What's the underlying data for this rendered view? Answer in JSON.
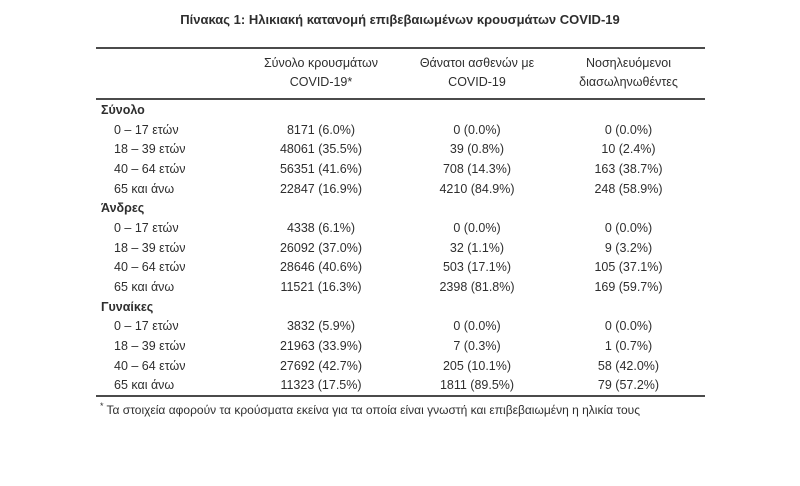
{
  "title": "Πίνακας 1: Ηλικιακή κατανομή επιβεβαιωμένων κρουσμάτων COVID-19",
  "colors": {
    "text": "#2e2e2e",
    "rule": "#4b4b4b",
    "background": "#ffffff"
  },
  "table": {
    "columns": [
      {
        "line1": "Σύνολο κρουσμάτων",
        "line2": "COVID-19*"
      },
      {
        "line1": "Θάνατοι ασθενών με",
        "line2": "COVID-19"
      },
      {
        "line1": "Νοσηλευόμενοι",
        "line2": "διασωληνωθέντες"
      }
    ],
    "sections": [
      {
        "label": "Σύνολο",
        "rows": [
          {
            "age": "0 – 17 ετών",
            "cases": "8171 (6.0%)",
            "deaths": "0 (0.0%)",
            "intubated": "0 (0.0%)"
          },
          {
            "age": "18 – 39 ετών",
            "cases": "48061 (35.5%)",
            "deaths": "39 (0.8%)",
            "intubated": "10 (2.4%)"
          },
          {
            "age": "40 – 64 ετών",
            "cases": "56351 (41.6%)",
            "deaths": "708 (14.3%)",
            "intubated": "163 (38.7%)"
          },
          {
            "age": "65 και άνω",
            "cases": "22847 (16.9%)",
            "deaths": "4210 (84.9%)",
            "intubated": "248 (58.9%)"
          }
        ]
      },
      {
        "label": "Άνδρες",
        "rows": [
          {
            "age": "0 – 17 ετών",
            "cases": "4338 (6.1%)",
            "deaths": "0 (0.0%)",
            "intubated": "0 (0.0%)"
          },
          {
            "age": "18 – 39 ετών",
            "cases": "26092 (37.0%)",
            "deaths": "32 (1.1%)",
            "intubated": "9 (3.2%)"
          },
          {
            "age": "40 – 64 ετών",
            "cases": "28646 (40.6%)",
            "deaths": "503 (17.1%)",
            "intubated": "105 (37.1%)"
          },
          {
            "age": "65 και άνω",
            "cases": "11521 (16.3%)",
            "deaths": "2398 (81.8%)",
            "intubated": "169 (59.7%)"
          }
        ]
      },
      {
        "label": "Γυναίκες",
        "rows": [
          {
            "age": "0 – 17 ετών",
            "cases": "3832 (5.9%)",
            "deaths": "0 (0.0%)",
            "intubated": "0 (0.0%)"
          },
          {
            "age": "18 – 39 ετών",
            "cases": "21963 (33.9%)",
            "deaths": "7 (0.3%)",
            "intubated": "1 (0.7%)"
          },
          {
            "age": "40 – 64 ετών",
            "cases": "27692 (42.7%)",
            "deaths": "205 (10.1%)",
            "intubated": "58 (42.0%)"
          },
          {
            "age": "65 και άνω",
            "cases": "11323 (17.5%)",
            "deaths": "1811 (89.5%)",
            "intubated": "79 (57.2%)"
          }
        ]
      }
    ]
  },
  "footnote": {
    "marker": "*",
    "text": "Τα στοιχεία αφορούν τα κρούσματα εκείνα για τα οποία είναι γνωστή και επιβεβαιωμένη η ηλικία τους"
  }
}
